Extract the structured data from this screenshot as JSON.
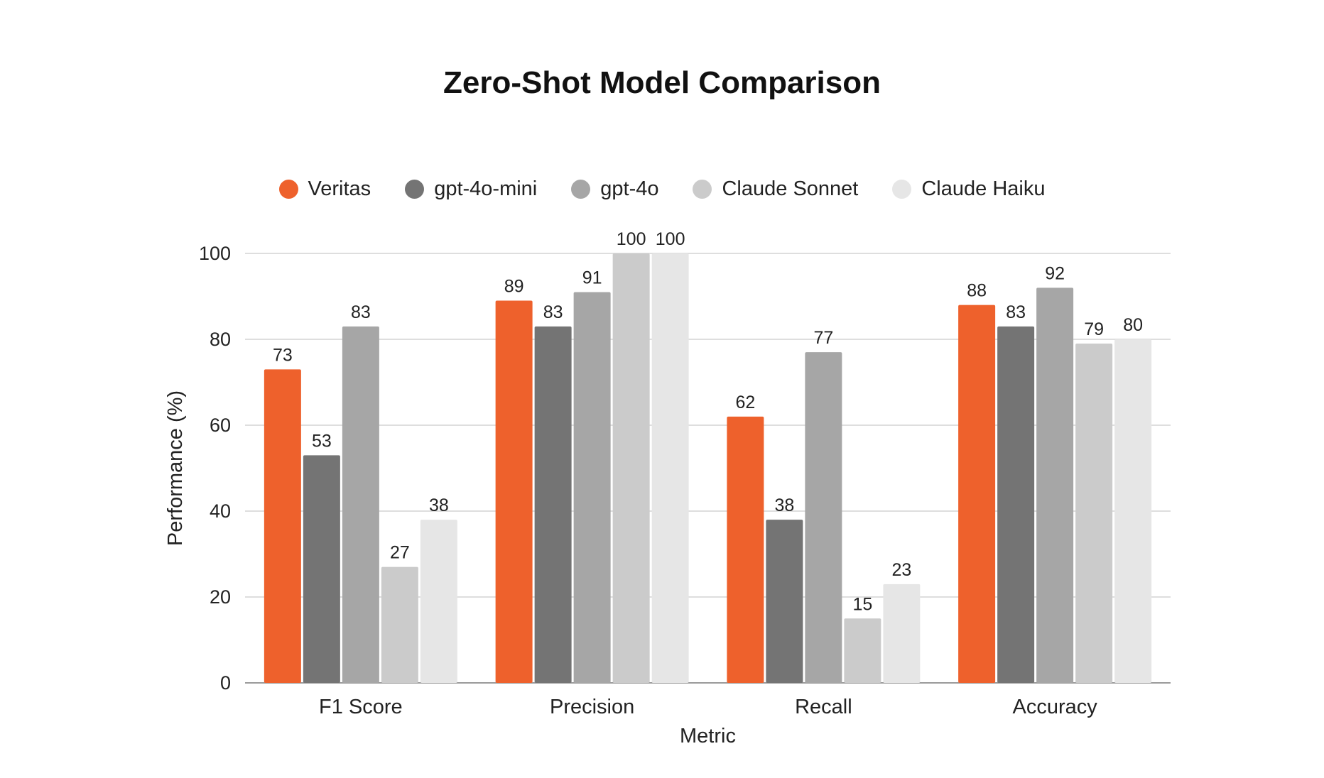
{
  "chart_data": {
    "type": "bar",
    "title": "Zero-Shot Model Comparison",
    "xlabel": "Metric",
    "ylabel": "Performance (%)",
    "ylim": [
      0,
      100
    ],
    "yticks": [
      0,
      20,
      40,
      60,
      80,
      100
    ],
    "grid": true,
    "legend_position": "top-center",
    "categories": [
      "F1 Score",
      "Precision",
      "Recall",
      "Accuracy"
    ],
    "series": [
      {
        "name": "Veritas",
        "color": "#ee612c",
        "values": [
          73,
          89,
          62,
          88
        ]
      },
      {
        "name": "gpt-4o-mini",
        "color": "#747474",
        "values": [
          53,
          83,
          38,
          83
        ]
      },
      {
        "name": "gpt-4o",
        "color": "#a6a6a6",
        "values": [
          83,
          91,
          77,
          92
        ]
      },
      {
        "name": "Claude Sonnet",
        "color": "#cbcbcb",
        "values": [
          27,
          100,
          15,
          79
        ]
      },
      {
        "name": "Claude Haiku",
        "color": "#e6e6e6",
        "values": [
          38,
          100,
          23,
          80
        ]
      }
    ]
  }
}
